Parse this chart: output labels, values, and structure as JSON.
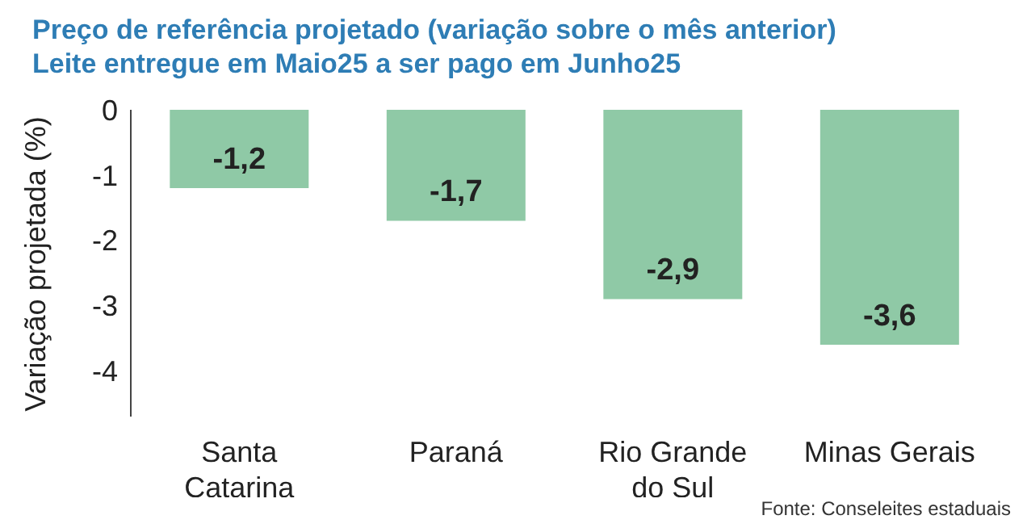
{
  "chart_data": {
    "type": "bar",
    "title": "Preço de referência projetado (variação sobre o mês anterior)",
    "subtitle": "Leite entregue em Maio25 a ser pago em Junho25",
    "ylabel": "Variação projetada (%)",
    "categories": [
      "Santa Catarina",
      "Paraná",
      "Rio Grande do Sul",
      "Minas Gerais"
    ],
    "values": [
      -1.2,
      -1.7,
      -2.9,
      -3.6
    ],
    "value_labels": [
      "-1,2",
      "-1,7",
      "-2,9",
      "-3,6"
    ],
    "color": "#8fc9a6",
    "ylim": [
      -4.7,
      0
    ],
    "yticks": [
      0,
      -1,
      -2,
      -3,
      -4
    ],
    "grid": false,
    "annotations": [
      "Fonte: Conseleites estaduais"
    ]
  }
}
